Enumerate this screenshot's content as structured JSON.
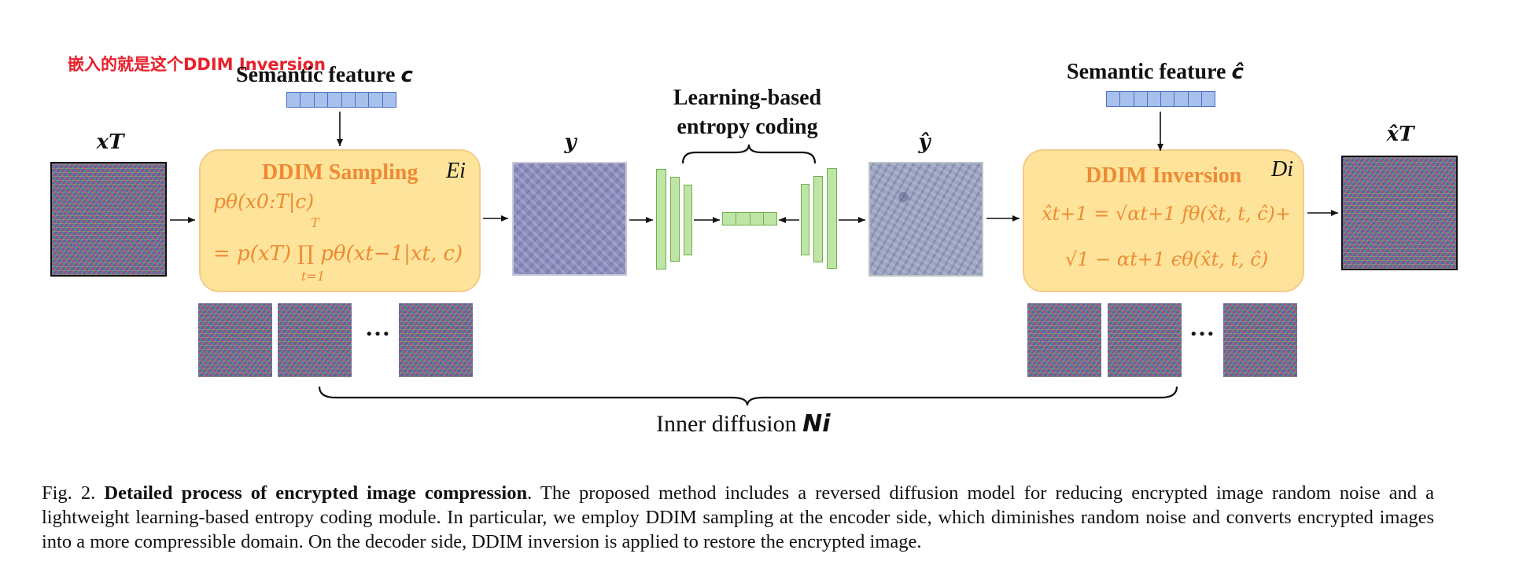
{
  "annotation": "嵌入的就是这个DDIM Inversion",
  "left": {
    "semantic_label": "Semantic feature ",
    "semantic_var": "c",
    "input_label": "xT",
    "block_title": "DDIM Sampling",
    "block_symbol": "Ei",
    "formula_line1": "pθ(x0:T|c)",
    "formula_line2": "= p(xT) ∏ pθ(xt−1|xt, c)",
    "prod_upper": "T",
    "prod_lower": "t=1",
    "output_label": "y"
  },
  "middle": {
    "label_line1": "Learning-based",
    "label_line2": "entropy coding"
  },
  "right": {
    "semantic_label": "Semantic feature ",
    "semantic_var": "ĉ",
    "input_label": "ŷ",
    "block_title": "DDIM Inversion",
    "block_symbol": "Di",
    "formula_line1": "x̂t+1 = √αt+1 fθ(x̂t, t, ĉ)+",
    "formula_line2": "√1 − αt+1 ϵθ(x̂t, t, ĉ)",
    "output_label": "x̂T"
  },
  "ellipsis": "…",
  "inner_diffusion_label": "Inner diffusion ",
  "inner_diffusion_var": "Ni",
  "caption": {
    "prefix": "Fig. 2.  ",
    "bold": "Detailed process of encrypted image compression",
    "text": ". The proposed method includes a reversed diffusion model for reducing encrypted image random noise and a lightweight learning-based entropy coding module. In particular, we employ DDIM sampling at the encoder side, which diminishes random noise and converts encrypted images into a more compressible domain. On the decoder side, DDIM inversion is applied to restore the encrypted image."
  },
  "colors": {
    "block_fill": "#fde49a",
    "block_text": "#ee8a34",
    "token_fill": "#a8c0ec",
    "coder_fill": "#bfe5a6",
    "annotation": "#e8202a"
  }
}
